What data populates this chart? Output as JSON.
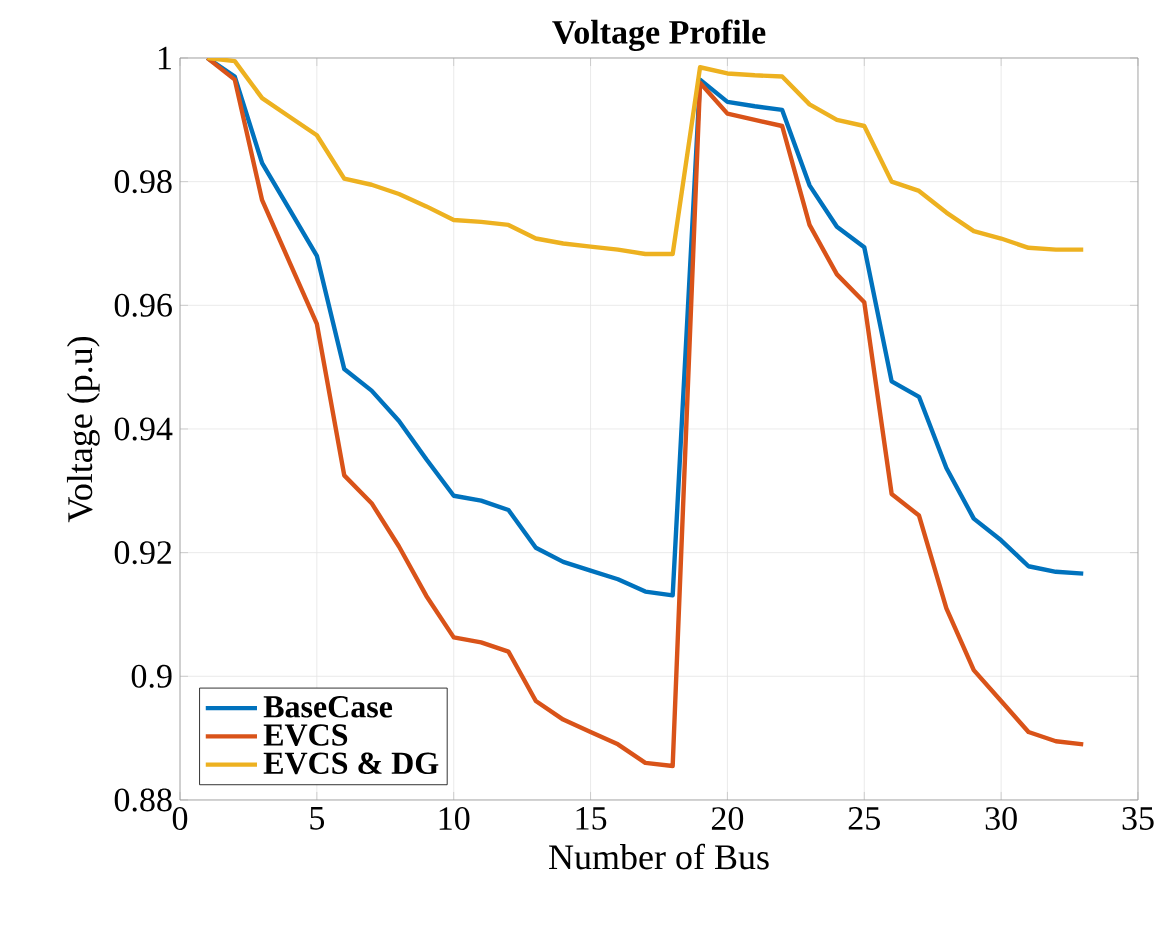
{
  "chart_data": {
    "type": "line",
    "title": "Voltage Profile",
    "xlabel": "Number of Bus",
    "ylabel": "Voltage (p.u)",
    "x": [
      1,
      2,
      3,
      4,
      5,
      6,
      7,
      8,
      9,
      10,
      11,
      12,
      13,
      14,
      15,
      16,
      17,
      18,
      19,
      20,
      21,
      22,
      23,
      24,
      25,
      26,
      27,
      28,
      29,
      30,
      31,
      32,
      33
    ],
    "series": [
      {
        "name": "BaseCase",
        "color": "#0072bd",
        "values": [
          1,
          0.997,
          0.983,
          0.9755,
          0.968,
          0.9497,
          0.9462,
          0.9413,
          0.9351,
          0.9292,
          0.9284,
          0.9269,
          0.9208,
          0.9185,
          0.9171,
          0.9157,
          0.9137,
          0.9131,
          0.9965,
          0.9929,
          0.9922,
          0.9916,
          0.9794,
          0.9727,
          0.9694,
          0.9477,
          0.9452,
          0.9337,
          0.9255,
          0.922,
          0.9178,
          0.9169,
          0.9166
        ]
      },
      {
        "name": "EVCS",
        "color": "#d95319",
        "values": [
          1,
          0.9965,
          0.977,
          0.967,
          0.957,
          0.9325,
          0.928,
          0.921,
          0.913,
          0.9063,
          0.9055,
          0.904,
          0.896,
          0.893,
          0.891,
          0.889,
          0.886,
          0.8855,
          0.996,
          0.991,
          0.99,
          0.989,
          0.973,
          0.965,
          0.9605,
          0.9295,
          0.926,
          0.911,
          0.901,
          0.896,
          0.891,
          0.8895,
          0.889
        ]
      },
      {
        "name": "EVCS & DG",
        "color": "#edb120",
        "values": [
          1,
          0.9995,
          0.9935,
          0.9905,
          0.9875,
          0.9805,
          0.9795,
          0.978,
          0.976,
          0.9738,
          0.9735,
          0.973,
          0.9708,
          0.97,
          0.9695,
          0.969,
          0.9683,
          0.9683,
          0.9985,
          0.9975,
          0.9972,
          0.997,
          0.9925,
          0.99,
          0.989,
          0.98,
          0.9785,
          0.975,
          0.972,
          0.9708,
          0.9693,
          0.969,
          0.969
        ]
      }
    ],
    "xlim": [
      0,
      35
    ],
    "xticks": [
      0,
      5,
      10,
      15,
      20,
      25,
      30,
      35
    ],
    "ylim": [
      0.88,
      1
    ],
    "yticks": [
      0.88,
      0.9,
      0.92,
      0.94,
      0.96,
      0.98,
      1
    ],
    "grid": true,
    "legend": "bottom left",
    "line_style": "solid",
    "marker": "none"
  }
}
